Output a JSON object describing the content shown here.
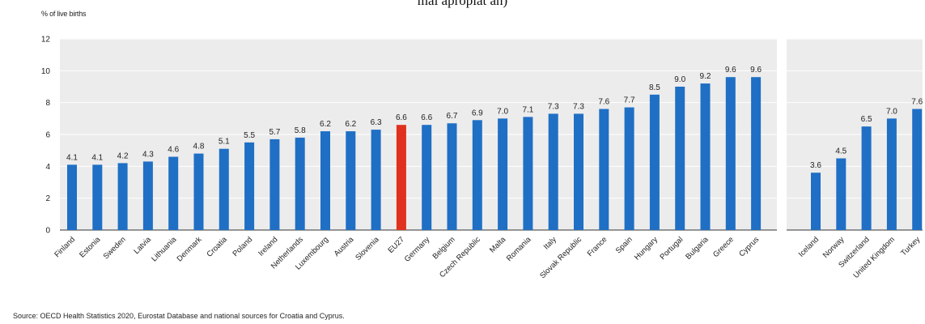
{
  "page": {
    "top_caption": "mai apropiat an)",
    "source": "Source: OECD Health Statistics 2020, Eurostat Database and national sources for Croatia and Cyprus."
  },
  "chart_data": {
    "type": "bar",
    "title": "",
    "ylabel": "% of live births",
    "xlabel": "",
    "ylim": [
      0,
      12
    ],
    "yticks": [
      0,
      2,
      4,
      6,
      8,
      10,
      12
    ],
    "grid": true,
    "legend": "none",
    "colors": {
      "default": "#1f6fc5",
      "highlight": "#e0301e",
      "background": "#ececec"
    },
    "groups": [
      {
        "categories": [
          "Finland",
          "Estonia",
          "Sweden",
          "Latvia",
          "Lithuania",
          "Denmark",
          "Croatia",
          "Poland",
          "Ireland",
          "Netherlands",
          "Luxembourg",
          "Austria",
          "Slovenia",
          "EU27",
          "Germany",
          "Belgium",
          "Czech Republic",
          "Malta",
          "Romania",
          "Italy",
          "Slovak Republic",
          "France",
          "Spain",
          "Hungary",
          "Portugal",
          "Bulgaria",
          "Greece",
          "Cyprus"
        ],
        "values": [
          4.1,
          4.1,
          4.2,
          4.3,
          4.6,
          4.8,
          5.1,
          5.5,
          5.7,
          5.8,
          6.2,
          6.2,
          6.3,
          6.6,
          6.6,
          6.7,
          6.9,
          7.0,
          7.1,
          7.3,
          7.3,
          7.6,
          7.7,
          8.5,
          9.0,
          9.2,
          9.6,
          9.6
        ],
        "value_labels": [
          "4.1",
          "4.1",
          "4.2",
          "4.3",
          "4.6",
          "4.8",
          "5.1",
          "5.5",
          "5.7",
          "5.8",
          "6.2",
          "6.2",
          "6.3",
          "6.6",
          "6.6",
          "6.7",
          "6.9",
          "7.0",
          "7.1",
          "7.3",
          "7.3",
          "7.6",
          "7.7",
          "8.5",
          "9.0",
          "9.2",
          "9.6",
          "9.6"
        ],
        "highlight": [
          "EU27"
        ]
      },
      {
        "categories": [
          "Iceland",
          "Norway",
          "Switzerland",
          "United Kingdom",
          "Turkey"
        ],
        "values": [
          3.6,
          4.5,
          6.5,
          7.0,
          7.6
        ],
        "value_labels": [
          "3.6",
          "4.5",
          "6.5",
          "7.0",
          "7.6"
        ]
      }
    ]
  }
}
